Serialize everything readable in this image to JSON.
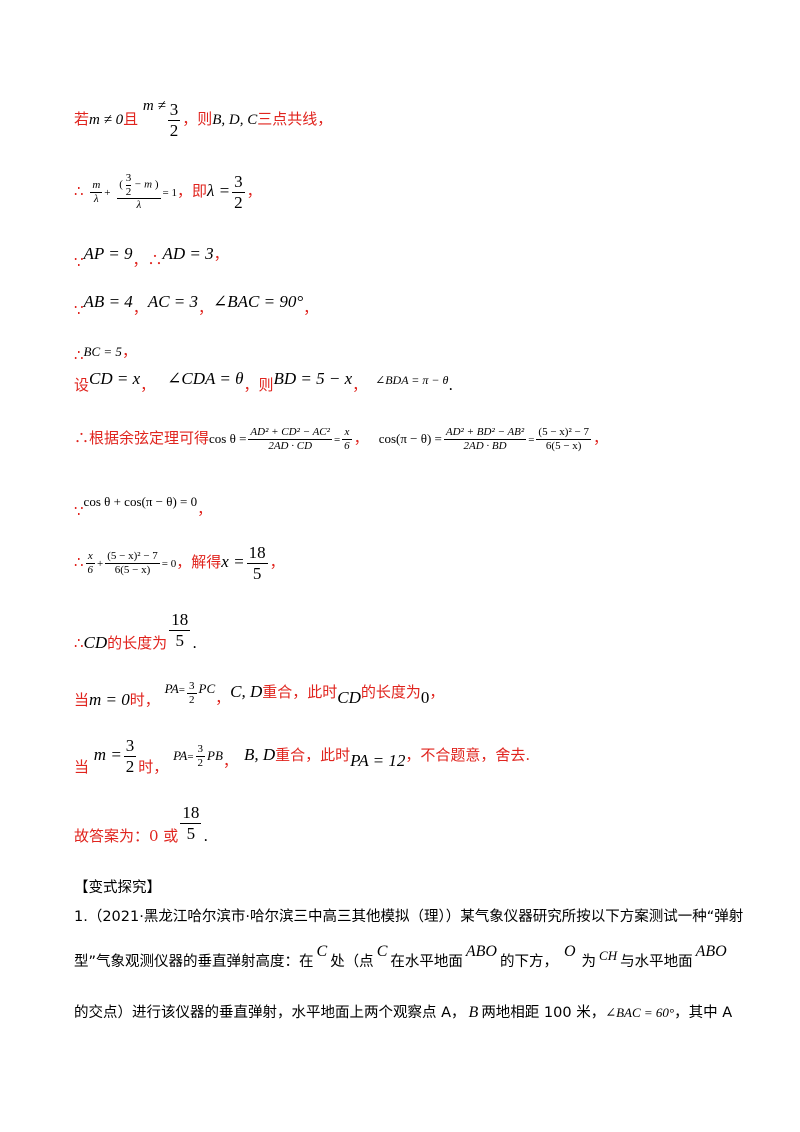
{
  "line01": {
    "pre": "若",
    "m_ne0": "m ≠ 0",
    "qie": "且",
    "m_ne": "m ≠",
    "num": "3",
    "den": "2",
    "then": "，则",
    "bdc": "B, D, C",
    "post": "三点共线，"
  },
  "line02": {
    "prefix": "∴",
    "t1n": "m",
    "t1d": "λ",
    "plus": "+",
    "t2n_a": "3",
    "t2n_b": "2",
    "t2n_m": "− m",
    "t2d": "λ",
    "eq1": "= 1",
    "ji": "，即",
    "lam": "λ =",
    "rn": "3",
    "rd": "2",
    "comma": "，"
  },
  "line03": {
    "because": "∵",
    "ap": "AP = 9",
    "c1": "，",
    "therefore": "∴",
    "ad": "AD = 3",
    "c2": "，"
  },
  "line04": {
    "because": "∵",
    "ab": "AB = 4",
    "c1": "，",
    "ac": "AC = 3",
    "c2": "，",
    "bac": "∠BAC = 90°",
    "c3": "，"
  },
  "line05": {
    "therefore": "∴",
    "bc": "BC = 5",
    "c": "，"
  },
  "line06": {
    "she": "设",
    "cd": "CD = x",
    "c1": "，",
    "cda": "∠CDA = θ",
    "c2": "，",
    "bd": "BD = 5 − x",
    "c3": "，",
    "ze": "则",
    "bda": "∠BDA = π − θ",
    "dot": "."
  },
  "line07": {
    "prefix": "∴根据余弦定理可得",
    "cos": "cos θ =",
    "n1": "AD² + CD² − AC²",
    "d1": "2AD · CD",
    "eq": "=",
    "xn": "x",
    "xd": "6",
    "c1": "，",
    "cos2": "cos(π − θ) =",
    "n2": "AD² + BD² − AB²",
    "d2": "2AD · BD",
    "eq2": "=",
    "n3": "(5 − x)² − 7",
    "d3": "6(5 − x)",
    "c2": "，"
  },
  "line08": {
    "because": "∵",
    "expr": "cos θ + cos(π − θ) = 0",
    "c": "，"
  },
  "line09": {
    "therefore": "∴",
    "xn": "x",
    "xd": "6",
    "plus": "+",
    "n": "(5 − x)² − 7",
    "d": "6(5 − x)",
    "eq0": "= 0",
    "jie": "，解得",
    "x": "x =",
    "rn": "18",
    "rd": "5",
    "c": "，"
  },
  "line10": {
    "therefore": "∴",
    "cd": "CD",
    "text": "的长度为",
    "rn": "18",
    "rd": "5",
    "dot": "."
  },
  "line11": {
    "dang": "当",
    "m": "m = 0",
    "shi": "时，",
    "pa": "PA",
    "vec_mark": "→",
    "eq": "=",
    "cn": "3",
    "cd_": "2",
    "pc": "PC",
    "c1": "，",
    "cd2": "C, D",
    "chonghe": "重合，此时",
    "cdl": "CD",
    "len": "的长度为",
    "zero": "0",
    "c2": "，"
  },
  "line12": {
    "dang": "当",
    "m": "m =",
    "mn": "3",
    "md": "2",
    "shi": "时，",
    "pa": "PA",
    "eq": "=",
    "cn": "3",
    "cd_": "2",
    "pb": "PB",
    "c1": "，",
    "bd": "B, D",
    "chonghe": "重合，此时",
    "pa12": "PA = 12",
    "tail": "，不合题意，舍去."
  },
  "line13": {
    "text": "故答案为：0 或",
    "rn": "18",
    "rd": "5",
    "dot": "."
  },
  "section": {
    "title": "【变式探究】"
  },
  "problem": {
    "l1": "1.（2021·黑龙江哈尔滨市·哈尔滨三中高三其他模拟（理））某气象仪器研究所按以下方案测试一种“弹射",
    "l2a": "型”气象观测仪器的垂直弹射高度：在",
    "C1": "C",
    "l2b": "处（点",
    "C2": "C",
    "l2c": "在水平地面",
    "ABO1": "ABO",
    "l2d": "的下方，",
    "O": "O",
    "l2e": "为",
    "CH": "CH",
    "l2f": "与水平地面",
    "ABO2": "ABO",
    "l3a": "的交点）进行该仪器的垂直弹射，水平地面上两个观察点 A，",
    "B": "B",
    "l3b": "两地相距 100 米，",
    "bac": "∠BAC = 60°",
    "l3c": "，其中 A"
  }
}
